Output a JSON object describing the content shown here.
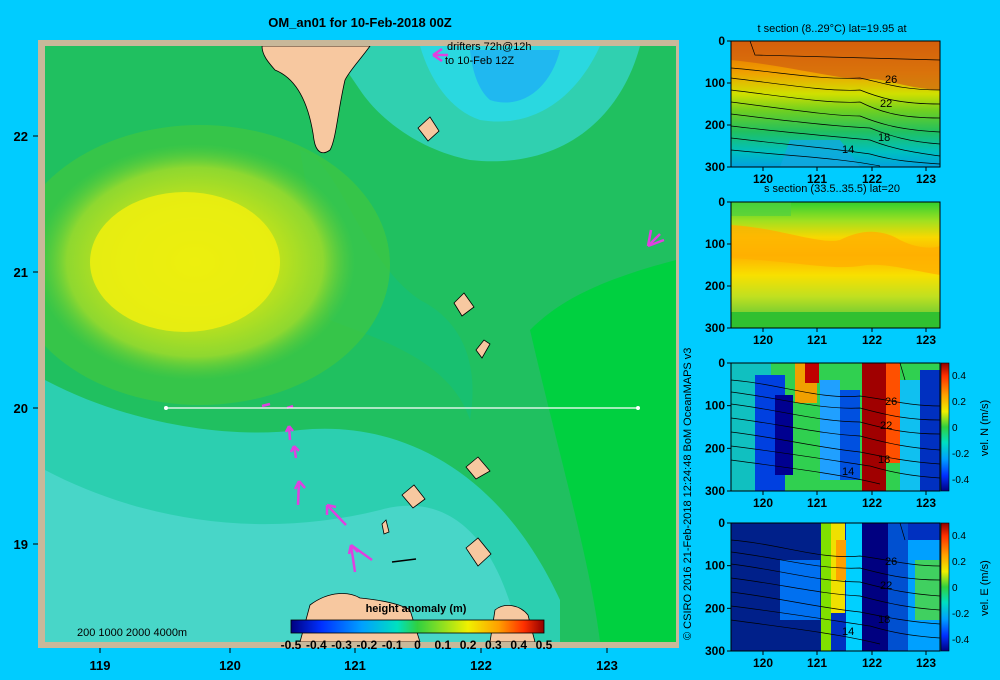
{
  "chart_data": [
    {
      "type": "heatmap",
      "title": "OM_an01 for 10-Feb-2018 00Z",
      "annotation": "drifters 72h@12h to 10-Feb 12Z",
      "annotation_lines": [
        "drifters 72h@12h",
        "to 10-Feb 12Z"
      ],
      "x_ticks": [
        "119",
        "120",
        "121",
        "122",
        "123"
      ],
      "y_ticks": [
        "22",
        "21",
        "20",
        "19"
      ],
      "xlim": [
        118.5,
        123.5
      ],
      "ylim": [
        18.25,
        22.7
      ],
      "depth_legend": "200  1000  2000  4000m",
      "colorbar": {
        "label": "height anomaly  (m)",
        "ticks": [
          "-0.5",
          "-0.4",
          "-0.3",
          "-0.2",
          "-0.1",
          "0",
          "0.1",
          "0.2",
          "0.3",
          "0.4",
          "0.5"
        ],
        "range": [
          -0.5,
          0.5
        ]
      },
      "section_line": {
        "lat": 20,
        "lon_start": 119.5,
        "lon_end": 123.2
      }
    },
    {
      "type": "heatmap",
      "title": "t section (8..29°C) lat=19.95 at",
      "x_ticks": [
        "120",
        "121",
        "122",
        "123"
      ],
      "y_ticks": [
        "0",
        "100",
        "200",
        "300"
      ],
      "contour_labels": [
        "26",
        "22",
        "18",
        "14"
      ]
    },
    {
      "type": "heatmap",
      "title": "s section (33.5..35.5) lat=20",
      "x_ticks": [
        "120",
        "121",
        "122",
        "123"
      ],
      "y_ticks": [
        "0",
        "100",
        "200",
        "300"
      ]
    },
    {
      "type": "heatmap",
      "x_ticks": [
        "120",
        "121",
        "122",
        "123"
      ],
      "y_ticks": [
        "0",
        "100",
        "200",
        "300"
      ],
      "contour_labels": [
        "26",
        "22",
        "18",
        "14"
      ],
      "colorbar": {
        "label": "vel. N  (m/s)",
        "ticks": [
          "0.4",
          "0.2",
          "0",
          "-0.2",
          "-0.4"
        ]
      }
    },
    {
      "type": "heatmap",
      "x_ticks": [
        "120",
        "121",
        "122",
        "123"
      ],
      "y_ticks": [
        "0",
        "100",
        "200",
        "300"
      ],
      "contour_labels": [
        "26",
        "22",
        "18",
        "14"
      ],
      "colorbar": {
        "label": "vel. E  (m/s)",
        "ticks": [
          "0.4",
          "0.2",
          "0",
          "-0.2",
          "-0.4"
        ]
      }
    }
  ],
  "credit": "© CSIRO 2016   21-Feb-2018 12:24:48 BoM OceanMAPS v3",
  "colors": {
    "background": "#00ccff",
    "land": "#f7c8a0",
    "frame": "#c8b89a",
    "drifter": "#e040e0"
  }
}
